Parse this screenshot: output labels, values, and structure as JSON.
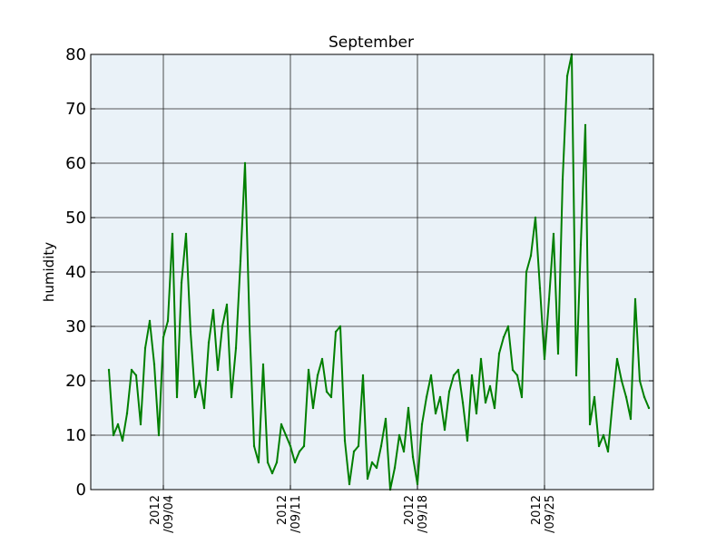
{
  "chart_data": {
    "type": "line",
    "title": "September",
    "ylabel": "humidity",
    "xlabel": "",
    "xlim": [
      "2012-08-31",
      "2012-10-01"
    ],
    "ylim": [
      0,
      80
    ],
    "y_ticks": [
      0,
      10,
      20,
      30,
      40,
      50,
      60,
      70,
      80
    ],
    "x_ticks": [
      {
        "date": "2012-09-04",
        "line1": "2012",
        "line2": "/09/04"
      },
      {
        "date": "2012-09-11",
        "line1": "2012",
        "line2": "/09/11"
      },
      {
        "date": "2012-09-18",
        "line1": "2012",
        "line2": "/09/18"
      },
      {
        "date": "2012-09-25",
        "line1": "2012",
        "line2": "/09/25"
      }
    ],
    "grid": true,
    "background": "#eaf2f8",
    "series": [
      {
        "color": "#007f00",
        "x": [
          "2012-09-01 00:00",
          "2012-09-01 06:00",
          "2012-09-01 12:00",
          "2012-09-01 18:00",
          "2012-09-02 00:00",
          "2012-09-02 06:00",
          "2012-09-02 12:00",
          "2012-09-02 18:00",
          "2012-09-03 00:00",
          "2012-09-03 06:00",
          "2012-09-03 12:00",
          "2012-09-03 18:00",
          "2012-09-04 00:00",
          "2012-09-04 06:00",
          "2012-09-04 12:00",
          "2012-09-04 18:00",
          "2012-09-05 00:00",
          "2012-09-05 06:00",
          "2012-09-05 12:00",
          "2012-09-05 18:00",
          "2012-09-06 00:00",
          "2012-09-06 06:00",
          "2012-09-06 12:00",
          "2012-09-06 18:00",
          "2012-09-07 00:00",
          "2012-09-07 06:00",
          "2012-09-07 12:00",
          "2012-09-07 18:00",
          "2012-09-08 00:00",
          "2012-09-08 06:00",
          "2012-09-08 12:00",
          "2012-09-08 18:00",
          "2012-09-09 00:00",
          "2012-09-09 06:00",
          "2012-09-09 12:00",
          "2012-09-09 18:00",
          "2012-09-10 00:00",
          "2012-09-10 06:00",
          "2012-09-10 12:00",
          "2012-09-10 18:00",
          "2012-09-11 00:00",
          "2012-09-11 06:00",
          "2012-09-11 12:00",
          "2012-09-11 18:00",
          "2012-09-12 00:00",
          "2012-09-12 06:00",
          "2012-09-12 12:00",
          "2012-09-12 18:00",
          "2012-09-13 00:00",
          "2012-09-13 06:00",
          "2012-09-13 12:00",
          "2012-09-13 18:00",
          "2012-09-14 00:00",
          "2012-09-14 06:00",
          "2012-09-14 12:00",
          "2012-09-14 18:00",
          "2012-09-15 00:00",
          "2012-09-15 06:00",
          "2012-09-15 12:00",
          "2012-09-15 18:00",
          "2012-09-16 00:00",
          "2012-09-16 06:00",
          "2012-09-16 12:00",
          "2012-09-16 18:00",
          "2012-09-17 00:00",
          "2012-09-17 06:00",
          "2012-09-17 12:00",
          "2012-09-17 18:00",
          "2012-09-18 00:00",
          "2012-09-18 06:00",
          "2012-09-18 12:00",
          "2012-09-18 18:00",
          "2012-09-19 00:00",
          "2012-09-19 06:00",
          "2012-09-19 12:00",
          "2012-09-19 18:00",
          "2012-09-20 00:00",
          "2012-09-20 06:00",
          "2012-09-20 12:00",
          "2012-09-20 18:00",
          "2012-09-21 00:00",
          "2012-09-21 06:00",
          "2012-09-21 12:00",
          "2012-09-21 18:00",
          "2012-09-22 00:00",
          "2012-09-22 06:00",
          "2012-09-22 12:00",
          "2012-09-22 18:00",
          "2012-09-23 00:00",
          "2012-09-23 06:00",
          "2012-09-23 12:00",
          "2012-09-23 18:00",
          "2012-09-24 00:00",
          "2012-09-24 06:00",
          "2012-09-24 12:00",
          "2012-09-24 18:00",
          "2012-09-25 00:00",
          "2012-09-25 06:00",
          "2012-09-25 12:00",
          "2012-09-25 18:00",
          "2012-09-26 00:00",
          "2012-09-26 06:00",
          "2012-09-26 12:00",
          "2012-09-26 18:00",
          "2012-09-27 00:00",
          "2012-09-27 06:00",
          "2012-09-27 12:00",
          "2012-09-27 18:00",
          "2012-09-28 00:00",
          "2012-09-28 06:00",
          "2012-09-28 12:00",
          "2012-09-28 18:00",
          "2012-09-29 00:00",
          "2012-09-29 06:00",
          "2012-09-29 12:00",
          "2012-09-29 18:00",
          "2012-09-30 00:00",
          "2012-09-30 06:00",
          "2012-09-30 12:00",
          "2012-09-30 18:00"
        ],
        "y": [
          22,
          10,
          12,
          9,
          14,
          22,
          21,
          12,
          26,
          31,
          23,
          10,
          28,
          31,
          47,
          17,
          38,
          47,
          29,
          17,
          20,
          15,
          27,
          33,
          22,
          30,
          34,
          17,
          26,
          42,
          60,
          30,
          8,
          5,
          23,
          5,
          3,
          5,
          12,
          10,
          8,
          5,
          7,
          8,
          22,
          15,
          21,
          24,
          18,
          17,
          29,
          30,
          9,
          1,
          7,
          8,
          21,
          2,
          5,
          4,
          8,
          13,
          0,
          4,
          10,
          7,
          15,
          6,
          1,
          12,
          17,
          21,
          14,
          17,
          11,
          18,
          21,
          22,
          16,
          9,
          21,
          14,
          24,
          16,
          19,
          15,
          25,
          28,
          30,
          22,
          21,
          17,
          40,
          43,
          50,
          37,
          24,
          35,
          47,
          25,
          57,
          76,
          80,
          21,
          45,
          67,
          12,
          17,
          8,
          10,
          7,
          16,
          24,
          20,
          17,
          13,
          35,
          20,
          17,
          15
        ]
      }
    ]
  }
}
